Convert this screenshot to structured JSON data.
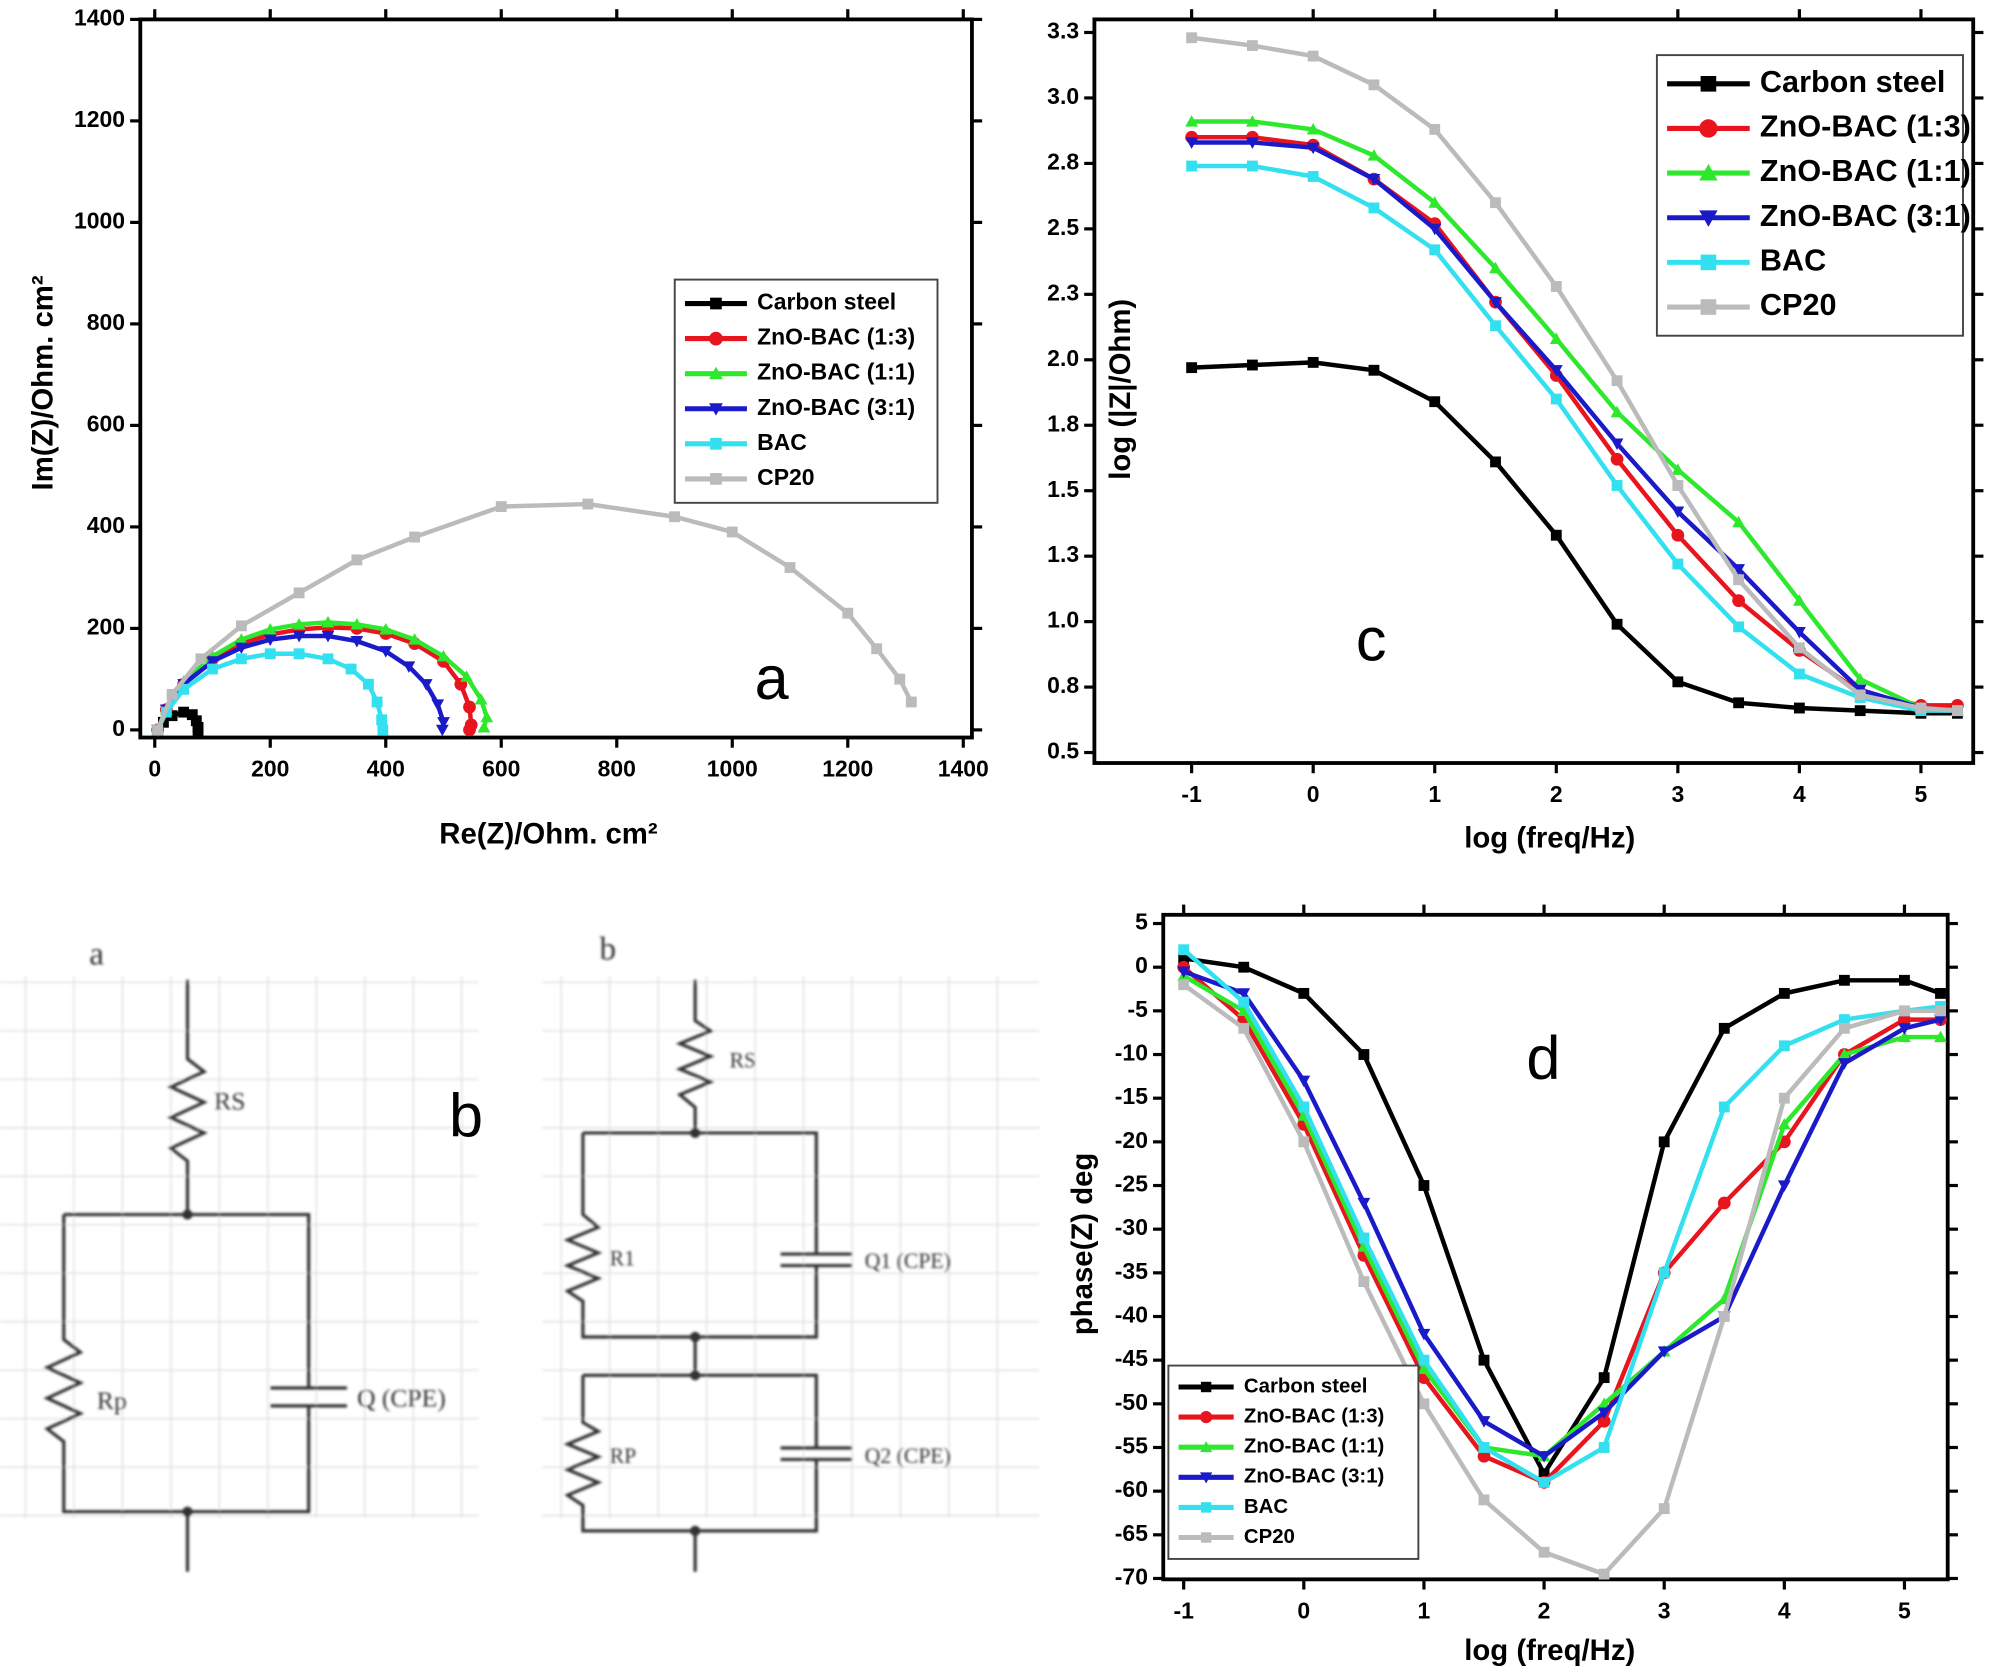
{
  "chart_data": [
    {
      "type": "line",
      "xlabel": "Re(Z)/Ohm. cm²",
      "ylabel": "Im(Z)/Ohm. cm²",
      "annotation": "a",
      "xlim": [
        -25,
        1415
      ],
      "ylim": [
        -15,
        1400
      ],
      "xticks": [
        0,
        200,
        400,
        600,
        800,
        1000,
        1200,
        1400
      ],
      "yticks": [
        0,
        200,
        400,
        600,
        800,
        1000,
        1200,
        1400
      ],
      "legend": "center right",
      "series": [
        {
          "name": "Carbon steel",
          "color": "#000000",
          "marker": "square",
          "x": [
            5,
            15,
            30,
            50,
            65,
            72,
            75,
            75
          ],
          "values": [
            0,
            15,
            28,
            35,
            30,
            18,
            5,
            -3
          ]
        },
        {
          "name": "ZnO-BAC (1:3)",
          "color": "#e8141e",
          "marker": "circle",
          "x": [
            5,
            20,
            50,
            100,
            150,
            200,
            250,
            300,
            350,
            400,
            450,
            500,
            530,
            545,
            548,
            545
          ],
          "values": [
            0,
            40,
            90,
            140,
            170,
            188,
            198,
            202,
            200,
            190,
            170,
            135,
            90,
            45,
            10,
            0
          ]
        },
        {
          "name": "ZnO-BAC (1:1)",
          "color": "#2ee82e",
          "marker": "triangle-up",
          "x": [
            5,
            20,
            50,
            100,
            150,
            200,
            250,
            300,
            350,
            400,
            450,
            500,
            540,
            565,
            575,
            570
          ],
          "values": [
            0,
            40,
            95,
            145,
            178,
            198,
            208,
            212,
            208,
            198,
            178,
            145,
            105,
            60,
            25,
            5
          ]
        },
        {
          "name": "ZnO-BAC (3:1)",
          "color": "#1a1ac8",
          "marker": "triangle-down",
          "x": [
            5,
            20,
            50,
            100,
            150,
            200,
            250,
            300,
            350,
            400,
            440,
            470,
            490,
            500,
            498
          ],
          "values": [
            0,
            40,
            90,
            135,
            162,
            178,
            185,
            185,
            175,
            155,
            125,
            90,
            50,
            15,
            0
          ]
        },
        {
          "name": "BAC",
          "color": "#33e0f0",
          "marker": "square",
          "x": [
            5,
            20,
            50,
            100,
            150,
            200,
            250,
            300,
            340,
            370,
            385,
            393,
            395
          ],
          "values": [
            0,
            35,
            80,
            120,
            140,
            150,
            150,
            140,
            120,
            90,
            55,
            20,
            0
          ]
        },
        {
          "name": "CP20",
          "color": "#bbbbbb",
          "marker": "square",
          "x": [
            5,
            30,
            80,
            150,
            250,
            350,
            450,
            600,
            750,
            900,
            1000,
            1100,
            1200,
            1250,
            1290,
            1310
          ],
          "values": [
            0,
            70,
            140,
            205,
            270,
            335,
            380,
            440,
            445,
            420,
            390,
            320,
            230,
            160,
            100,
            55
          ]
        }
      ]
    },
    {
      "type": "line",
      "xlabel": "log (freq/Hz)",
      "ylabel": "log (|Z|/Ohm)",
      "annotation": "c",
      "xlim": [
        -1.8,
        5.43
      ],
      "ylim": [
        0.46,
        3.3
      ],
      "xticks": [
        -1,
        0,
        1,
        2,
        3,
        4,
        5
      ],
      "yticks": [
        {
          "value": 3.25,
          "label": "3.3"
        },
        {
          "value": 3.0,
          "label": "3.0"
        },
        {
          "value": 2.75,
          "label": "2.8"
        },
        2.5,
        {
          "value": 2.25,
          "label": "2.3"
        },
        {
          "value": 2.0,
          "label": "2.0"
        },
        {
          "value": 1.75,
          "label": "1.8"
        },
        1.5,
        {
          "value": 1.25,
          "label": "1.3"
        },
        {
          "value": 1.0,
          "label": "1.0"
        },
        {
          "value": 0.75,
          "label": "0.8"
        },
        0.5
      ],
      "legend": "upper right",
      "x": [
        -1,
        -0.5,
        0,
        0.5,
        1,
        1.5,
        2,
        2.5,
        3,
        3.5,
        4,
        4.5,
        5,
        5.3
      ],
      "series": [
        {
          "name": "Carbon steel",
          "color": "#000000",
          "marker": "square",
          "values": [
            1.97,
            1.98,
            1.99,
            1.96,
            1.84,
            1.61,
            1.33,
            0.99,
            0.77,
            0.69,
            0.67,
            0.66,
            0.65,
            0.65
          ]
        },
        {
          "name": "ZnO-BAC (1:3)",
          "color": "#e8141e",
          "marker": "circle",
          "values": [
            2.85,
            2.85,
            2.82,
            2.69,
            2.52,
            2.22,
            1.94,
            1.62,
            1.33,
            1.08,
            0.89,
            0.73,
            0.68,
            0.68
          ]
        },
        {
          "name": "ZnO-BAC (1:1)",
          "color": "#2ee82e",
          "marker": "triangle-up",
          "values": [
            2.91,
            2.91,
            2.88,
            2.78,
            2.6,
            2.35,
            2.08,
            1.8,
            1.58,
            1.38,
            1.08,
            0.78,
            0.67,
            0.66
          ]
        },
        {
          "name": "ZnO-BAC (3:1)",
          "color": "#1a1ac8",
          "marker": "triangle-down",
          "values": [
            2.83,
            2.83,
            2.81,
            2.69,
            2.5,
            2.22,
            1.96,
            1.68,
            1.42,
            1.2,
            0.96,
            0.74,
            0.67,
            0.66
          ]
        },
        {
          "name": "BAC",
          "color": "#33e0f0",
          "marker": "square",
          "values": [
            2.74,
            2.74,
            2.7,
            2.58,
            2.42,
            2.13,
            1.85,
            1.52,
            1.22,
            0.98,
            0.8,
            0.71,
            0.66,
            0.66
          ]
        },
        {
          "name": "CP20",
          "color": "#bbbbbb",
          "marker": "square",
          "values": [
            3.23,
            3.2,
            3.16,
            3.05,
            2.88,
            2.6,
            2.28,
            1.92,
            1.52,
            1.16,
            0.9,
            0.72,
            0.67,
            0.66
          ]
        }
      ]
    },
    {
      "type": "line",
      "xlabel": "log (freq/Hz)",
      "ylabel": "phase(Z) deg",
      "annotation": "d",
      "xlim": [
        -1.17,
        5.36
      ],
      "ylim": [
        -70.1,
        6
      ],
      "xticks": [
        -1,
        0,
        1,
        2,
        3,
        4,
        5
      ],
      "yticks": [
        5,
        0,
        -5,
        -10,
        -15,
        -20,
        -25,
        -30,
        -35,
        -40,
        -45,
        -50,
        -55,
        -60,
        -65,
        -70
      ],
      "legend": "lower left",
      "x": [
        -1,
        -0.5,
        0,
        0.5,
        1,
        1.5,
        2,
        2.5,
        3,
        3.5,
        4,
        4.5,
        5,
        5.3
      ],
      "series": [
        {
          "name": "Carbon steel",
          "color": "#000000",
          "marker": "square",
          "values": [
            1,
            0,
            -3,
            -10,
            -25,
            -45,
            -58,
            -47,
            -20,
            -7,
            -3,
            -1.5,
            -1.5,
            -3
          ]
        },
        {
          "name": "ZnO-BAC (1:3)",
          "color": "#e8141e",
          "marker": "circle",
          "values": [
            0,
            -6,
            -18,
            -33,
            -47,
            -56,
            -59,
            -52,
            -35,
            -27,
            -20,
            -10,
            -6,
            -6
          ]
        },
        {
          "name": "ZnO-BAC (1:1)",
          "color": "#2ee82e",
          "marker": "triangle-up",
          "values": [
            -1,
            -5,
            -17,
            -32,
            -46,
            -55,
            -56,
            -50,
            -44,
            -38,
            -18,
            -10,
            -8,
            -8
          ]
        },
        {
          "name": "ZnO-BAC (3:1)",
          "color": "#1a1ac8",
          "marker": "triangle-down",
          "values": [
            -0.5,
            -3,
            -13,
            -27,
            -42,
            -52,
            -56,
            -51,
            -44,
            -40,
            -25,
            -11,
            -7,
            -6
          ]
        },
        {
          "name": "BAC",
          "color": "#33e0f0",
          "marker": "square",
          "values": [
            2,
            -4,
            -16,
            -31,
            -45,
            -55,
            -59,
            -55,
            -35,
            -16,
            -9,
            -6,
            -5,
            -4.5
          ]
        },
        {
          "name": "CP20",
          "color": "#bbbbbb",
          "marker": "square",
          "values": [
            -2,
            -7,
            -20,
            -36,
            -50,
            -61,
            -67,
            -69.5,
            -62,
            -40,
            -15,
            -7,
            -5,
            -5
          ]
        }
      ]
    }
  ],
  "circuits": {
    "panel_label": "b",
    "left": {
      "label": "a",
      "rs": "RS",
      "rp": "Rp",
      "q": "Q (CPE)"
    },
    "right": {
      "label": "b",
      "rs": "RS",
      "r1": "R1",
      "q1": "Q1 (CPE)",
      "rp": "RP",
      "q2": "Q2 (CPE)"
    }
  }
}
